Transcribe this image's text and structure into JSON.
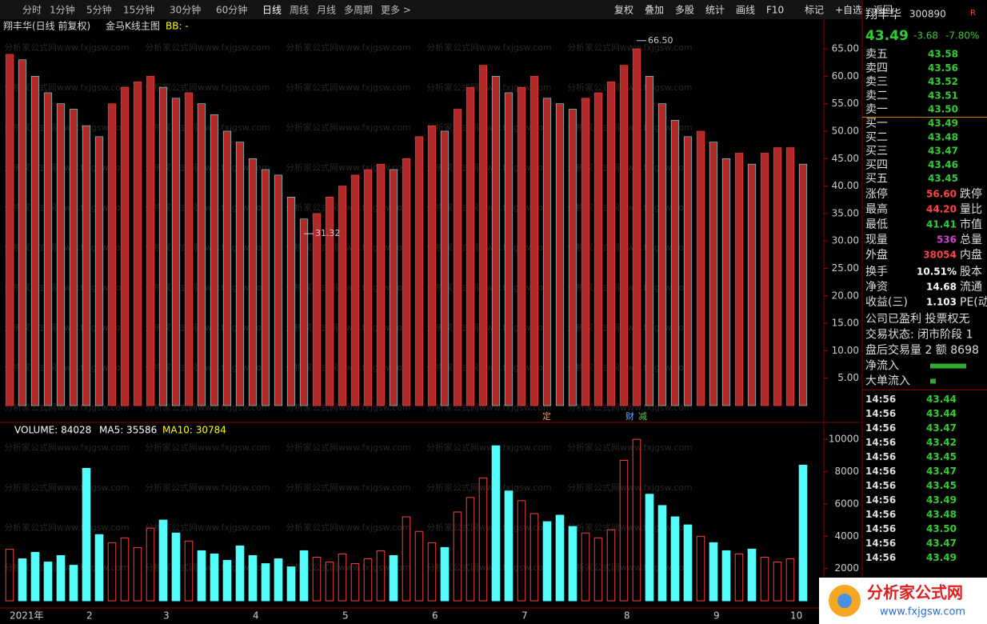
{
  "toolbar": {
    "left": [
      "分时",
      "1分钟",
      "5分钟",
      "15分钟",
      "30分钟",
      "60分钟",
      "日线",
      "周线",
      "月线",
      "多周期",
      "更多 >"
    ],
    "right": [
      "复权",
      "叠加",
      "多股",
      "统计",
      "画线",
      "F10",
      "标记",
      "+自选",
      "返回"
    ]
  },
  "watermark": "分析家公式网www.fxjgsw.com",
  "chart_data": [
    {
      "type": "bar",
      "title": "翔丰华(日线 前复权)",
      "subtitle": "金马K线主图",
      "indicator": "BB: -",
      "color": "#b02a2a",
      "categories": [
        "2021年",
        null,
        null,
        null,
        null,
        null,
        "2",
        null,
        null,
        null,
        null,
        null,
        "3",
        null,
        null,
        null,
        null,
        null,
        null,
        "4",
        null,
        null,
        null,
        null,
        null,
        null,
        "5",
        null,
        null,
        null,
        null,
        null,
        null,
        "6",
        null,
        null,
        null,
        null,
        null,
        null,
        "7",
        null,
        null,
        null,
        null,
        null,
        null,
        null,
        "8",
        null,
        null,
        null,
        null,
        null,
        null,
        "9",
        null,
        null,
        null,
        null,
        null,
        "10",
        null
      ],
      "values": [
        64,
        63,
        60,
        57,
        55,
        54,
        51,
        49,
        55,
        58,
        59,
        60,
        58,
        56,
        57,
        55,
        53,
        50,
        48,
        45,
        43,
        42,
        38,
        34,
        35,
        38,
        40,
        42,
        43,
        44,
        43,
        45,
        49,
        51,
        50,
        54,
        58,
        62,
        60,
        57,
        58,
        60,
        56,
        55,
        54,
        56,
        57,
        59,
        62,
        65,
        60,
        55,
        52,
        49,
        50,
        48,
        45,
        46,
        44,
        46,
        47,
        47,
        44
      ],
      "ylim": [
        0,
        68.8
      ],
      "yticks": [
        {
          "value": 5,
          "label": "5.00"
        },
        {
          "value": 10,
          "label": "10.00"
        },
        {
          "value": 15,
          "label": "15.00"
        },
        {
          "value": 20,
          "label": "20.00"
        },
        {
          "value": 25,
          "label": "25.00"
        },
        {
          "value": 30,
          "label": "30.00"
        },
        {
          "value": 35,
          "label": "35.00"
        },
        {
          "value": 40,
          "label": "40.00"
        },
        {
          "value": 45,
          "label": "45.00"
        },
        {
          "value": 50,
          "label": "50.00"
        },
        {
          "value": 55,
          "label": "55.00"
        },
        {
          "value": 60,
          "label": "60.00"
        },
        {
          "value": 65,
          "label": "65.00"
        }
      ],
      "annotations": [
        {
          "value": 66.5,
          "label": "66.50"
        },
        {
          "value": 31.32,
          "label": "31.32"
        }
      ],
      "markers": [
        "定",
        "财",
        "减"
      ]
    },
    {
      "type": "volume",
      "title": "VOLUME: 84028",
      "ma5": "MA5: 35586",
      "ma10": "MA10: 30784",
      "colors": {
        "up": "#ff3c3c",
        "down": "#54fcfc"
      },
      "values": [
        3200,
        2600,
        3000,
        2400,
        2800,
        2200,
        8200,
        4100,
        3600,
        3900,
        3300,
        4500,
        5000,
        4200,
        3700,
        3100,
        2900,
        2500,
        3400,
        2800,
        2300,
        2600,
        2100,
        3100,
        2700,
        2400,
        2900,
        2300,
        2600,
        3100,
        2800,
        5200,
        4300,
        3600,
        3300,
        5500,
        6400,
        7600,
        9600,
        6800,
        6200,
        5400,
        4900,
        5300,
        4600,
        4200,
        3900,
        4400,
        8700,
        10000,
        6600,
        5900,
        5200,
        4700,
        4000,
        3600,
        3100,
        2900,
        3200,
        2700,
        2400,
        2600,
        8400
      ],
      "ylim": [
        0,
        10900
      ],
      "yticks": [
        2000,
        4000,
        6000,
        8000,
        10000
      ]
    }
  ],
  "quote": {
    "name": "翔丰华",
    "code": "300890",
    "flag": "R",
    "price": "43.49",
    "change": "-3.68",
    "pct": "-7.80%",
    "sell": [
      [
        "卖五",
        "43.58"
      ],
      [
        "卖四",
        "43.56"
      ],
      [
        "卖三",
        "43.52"
      ],
      [
        "卖二",
        "43.51"
      ],
      [
        "卖一",
        "43.50"
      ]
    ],
    "buy": [
      [
        "买一",
        "43.49"
      ],
      [
        "买二",
        "43.48"
      ],
      [
        "买三",
        "43.47"
      ],
      [
        "买四",
        "43.46"
      ],
      [
        "买五",
        "43.45"
      ]
    ],
    "stats": [
      [
        "涨停",
        "56.60",
        "跌停"
      ],
      [
        "最高",
        "44.20",
        "量比"
      ],
      [
        "最低",
        "41.41",
        "市值"
      ],
      [
        "现量",
        "536",
        "总量"
      ],
      [
        "外盘",
        "38054",
        "内盘"
      ],
      [
        "换手",
        "10.51%",
        "股本"
      ],
      [
        "净资",
        "14.68",
        "流通"
      ],
      [
        "收益(三)",
        "1.103",
        "PE(动"
      ]
    ],
    "info": [
      "公司已盈利 投票权无",
      "交易状态: 闭市阶段 1",
      "盘后交易量 2 额 8698"
    ],
    "flows": [
      "净流入",
      "大单流入"
    ],
    "ticks": [
      [
        "14:56",
        "43.44"
      ],
      [
        "14:56",
        "43.44"
      ],
      [
        "14:56",
        "43.47"
      ],
      [
        "14:56",
        "43.42"
      ],
      [
        "14:56",
        "43.45"
      ],
      [
        "14:56",
        "43.47"
      ],
      [
        "14:56",
        "43.45"
      ],
      [
        "14:56",
        "43.49"
      ],
      [
        "14:56",
        "43.48"
      ],
      [
        "14:56",
        "43.50"
      ],
      [
        "14:56",
        "43.47"
      ],
      [
        "14:56",
        "43.49"
      ]
    ]
  },
  "logo": {
    "name": "分析家公式网",
    "url": "www.fxjgsw.com"
  }
}
